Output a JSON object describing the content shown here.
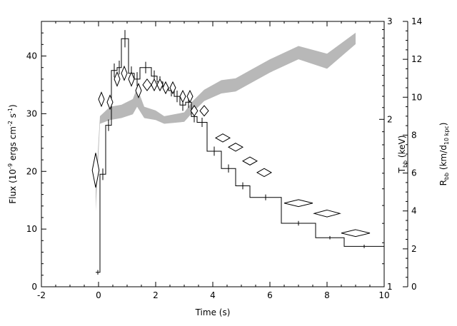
{
  "chart_data": {
    "type": "line",
    "xlabel": "Time (s)",
    "xlim": [
      -2,
      10
    ],
    "x_ticks": [
      "-2",
      "0",
      "2",
      "4",
      "6",
      "8",
      "10"
    ],
    "y_left": {
      "label_pre": "Flux (10",
      "label_exp1": "-9",
      "label_mid": " ergs cm",
      "label_exp2": "-2",
      "label_s": " s",
      "label_exp3": "-1",
      "label_post": ")",
      "lim": [
        0,
        46
      ],
      "ticks": [
        "0",
        "10",
        "20",
        "30",
        "40"
      ]
    },
    "y_kt": {
      "label_main": "T",
      "label_sub": "bb",
      "label_post": " (keV)",
      "log": true,
      "lim": [
        1,
        3
      ],
      "ticks": [
        "1",
        "2",
        "3"
      ]
    },
    "y_radius": {
      "label_main": "R",
      "label_sub1": "bb",
      "label_mid": " (km/d",
      "label_sub2": "10 kpc",
      "label_post": ")",
      "lim": [
        0,
        14
      ],
      "ticks": [
        "0",
        "2",
        "4",
        "6",
        "8",
        "10",
        "12",
        "14"
      ]
    },
    "series": [
      {
        "style": "histogram",
        "bins": [
          {
            "x0": -0.1,
            "x1": 0.05,
            "y": 2.5,
            "err": 0.4
          },
          {
            "x0": 0.05,
            "x1": 0.25,
            "y": 19.5,
            "err": 1.0
          },
          {
            "x0": 0.25,
            "x1": 0.45,
            "y": 28.0,
            "err": 1.0
          },
          {
            "x0": 0.45,
            "x1": 0.65,
            "y": 37.5,
            "err": 1.2
          },
          {
            "x0": 0.65,
            "x1": 0.8,
            "y": 38.0,
            "err": 1.2
          },
          {
            "x0": 0.8,
            "x1": 1.05,
            "y": 43.0,
            "err": 1.5
          },
          {
            "x0": 1.05,
            "x1": 1.25,
            "y": 37.0,
            "err": 1.2
          },
          {
            "x0": 1.25,
            "x1": 1.45,
            "y": 36.0,
            "err": 1.2
          },
          {
            "x0": 1.45,
            "x1": 1.85,
            "y": 38.0,
            "err": 1.0
          },
          {
            "x0": 1.85,
            "x1": 2.05,
            "y": 36.5,
            "err": 1.0
          },
          {
            "x0": 2.05,
            "x1": 2.25,
            "y": 35.5,
            "err": 1.0
          },
          {
            "x0": 2.25,
            "x1": 2.45,
            "y": 34.5,
            "err": 1.0
          },
          {
            "x0": 2.45,
            "x1": 2.65,
            "y": 34.0,
            "err": 1.0
          },
          {
            "x0": 2.65,
            "x1": 2.85,
            "y": 33.0,
            "err": 1.0
          },
          {
            "x0": 2.85,
            "x1": 3.05,
            "y": 31.5,
            "err": 1.0
          },
          {
            "x0": 3.05,
            "x1": 3.25,
            "y": 32.0,
            "err": 1.0
          },
          {
            "x0": 3.25,
            "x1": 3.45,
            "y": 29.5,
            "err": 1.0
          },
          {
            "x0": 3.45,
            "x1": 3.8,
            "y": 28.5,
            "err": 0.8
          },
          {
            "x0": 3.8,
            "x1": 4.3,
            "y": 23.5,
            "err": 0.8
          },
          {
            "x0": 4.3,
            "x1": 4.8,
            "y": 20.5,
            "err": 0.7
          },
          {
            "x0": 4.8,
            "x1": 5.3,
            "y": 17.5,
            "err": 0.6
          },
          {
            "x0": 5.3,
            "x1": 6.4,
            "y": 15.5,
            "err": 0.5
          },
          {
            "x0": 6.4,
            "x1": 7.6,
            "y": 11.0,
            "err": 0.4
          },
          {
            "x0": 7.6,
            "x1": 8.6,
            "y": 8.5,
            "err": 0.3
          },
          {
            "x0": 8.6,
            "x1": 10.0,
            "y": 7.0,
            "err": 0.3
          }
        ]
      },
      {
        "style": "diamond",
        "axis": "left",
        "points": [
          {
            "x": -0.1,
            "y": 20.2,
            "xerr": 0.12,
            "yerr": 3.0
          },
          {
            "x": 0.1,
            "y": 32.5,
            "xerr": 0.1,
            "yerr": 1.2
          },
          {
            "x": 0.4,
            "y": 32.0,
            "xerr": 0.1,
            "yerr": 1.2
          },
          {
            "x": 0.65,
            "y": 36.0,
            "xerr": 0.1,
            "yerr": 1.2
          },
          {
            "x": 0.9,
            "y": 37.0,
            "xerr": 0.1,
            "yerr": 1.2
          },
          {
            "x": 1.15,
            "y": 36.0,
            "xerr": 0.1,
            "yerr": 1.2
          },
          {
            "x": 1.4,
            "y": 34.0,
            "xerr": 0.1,
            "yerr": 1.2
          },
          {
            "x": 1.7,
            "y": 35.0,
            "xerr": 0.15,
            "yerr": 1.0
          },
          {
            "x": 1.95,
            "y": 35.0,
            "xerr": 0.1,
            "yerr": 1.0
          },
          {
            "x": 2.15,
            "y": 35.0,
            "xerr": 0.1,
            "yerr": 1.0
          },
          {
            "x": 2.35,
            "y": 34.5,
            "xerr": 0.1,
            "yerr": 1.0
          },
          {
            "x": 2.6,
            "y": 34.5,
            "xerr": 0.1,
            "yerr": 1.0
          },
          {
            "x": 2.95,
            "y": 33.0,
            "xerr": 0.1,
            "yerr": 1.0
          },
          {
            "x": 3.2,
            "y": 33.0,
            "xerr": 0.1,
            "yerr": 1.0
          },
          {
            "x": 3.35,
            "y": 30.5,
            "xerr": 0.12,
            "yerr": 0.9
          },
          {
            "x": 3.7,
            "y": 30.5,
            "xerr": 0.15,
            "yerr": 0.9
          },
          {
            "x": 4.35,
            "y": 25.8,
            "xerr": 0.25,
            "yerr": 0.7
          },
          {
            "x": 4.8,
            "y": 24.2,
            "xerr": 0.25,
            "yerr": 0.7
          },
          {
            "x": 5.3,
            "y": 21.8,
            "xerr": 0.25,
            "yerr": 0.7
          },
          {
            "x": 5.8,
            "y": 19.8,
            "xerr": 0.25,
            "yerr": 0.7
          },
          {
            "x": 7.0,
            "y": 14.5,
            "xerr": 0.5,
            "yerr": 0.6
          },
          {
            "x": 8.0,
            "y": 12.7,
            "xerr": 0.45,
            "yerr": 0.6
          },
          {
            "x": 9.0,
            "y": 9.3,
            "xerr": 0.5,
            "yerr": 0.6
          }
        ]
      },
      {
        "style": "band",
        "axis": "radius",
        "x": [
          -0.1,
          0.05,
          0.4,
          0.8,
          1.2,
          1.35,
          1.6,
          2.0,
          2.3,
          3.0,
          3.3,
          3.7,
          4.3,
          4.8,
          5.4,
          6.0,
          7.0,
          8.0,
          9.0
        ],
        "lower": [
          4.0,
          8.6,
          8.8,
          8.9,
          9.1,
          9.5,
          8.9,
          8.8,
          8.6,
          8.7,
          9.2,
          9.8,
          10.2,
          10.3,
          10.8,
          11.3,
          12.0,
          11.5,
          12.8
        ],
        "upper": [
          5.2,
          9.0,
          9.5,
          9.6,
          9.9,
          10.5,
          9.5,
          9.3,
          9.0,
          9.2,
          9.8,
          10.4,
          10.9,
          11.0,
          11.5,
          12.0,
          12.7,
          12.3,
          13.4
        ]
      }
    ]
  }
}
